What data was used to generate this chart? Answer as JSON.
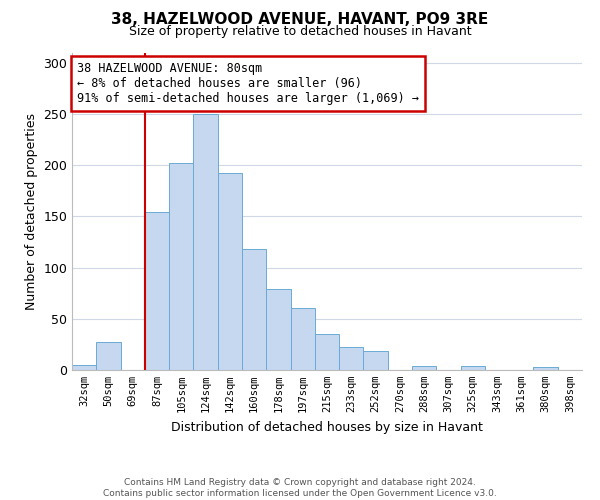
{
  "title": "38, HAZELWOOD AVENUE, HAVANT, PO9 3RE",
  "subtitle": "Size of property relative to detached houses in Havant",
  "xlabel": "Distribution of detached houses by size in Havant",
  "ylabel": "Number of detached properties",
  "bar_labels": [
    "32sqm",
    "50sqm",
    "69sqm",
    "87sqm",
    "105sqm",
    "124sqm",
    "142sqm",
    "160sqm",
    "178sqm",
    "197sqm",
    "215sqm",
    "233sqm",
    "252sqm",
    "270sqm",
    "288sqm",
    "307sqm",
    "325sqm",
    "343sqm",
    "361sqm",
    "380sqm",
    "398sqm"
  ],
  "bar_values": [
    5,
    27,
    0,
    154,
    202,
    250,
    192,
    118,
    79,
    61,
    35,
    22,
    19,
    0,
    4,
    0,
    4,
    0,
    0,
    3,
    0
  ],
  "bar_color": "#c5d8f0",
  "bar_edge_color": "#6aaad4",
  "vline_x_index": 3,
  "vline_color": "#cc0000",
  "annotation_line1": "38 HAZELWOOD AVENUE: 80sqm",
  "annotation_line2": "← 8% of detached houses are smaller (96)",
  "annotation_line3": "91% of semi-detached houses are larger (1,069) →",
  "annotation_box_color": "#ffffff",
  "annotation_box_edge": "#cc0000",
  "ylim": [
    0,
    310
  ],
  "yticks": [
    0,
    50,
    100,
    150,
    200,
    250,
    300
  ],
  "footer_text": "Contains HM Land Registry data © Crown copyright and database right 2024.\nContains public sector information licensed under the Open Government Licence v3.0.",
  "bg_color": "#ffffff",
  "grid_color": "#d0d8e8"
}
